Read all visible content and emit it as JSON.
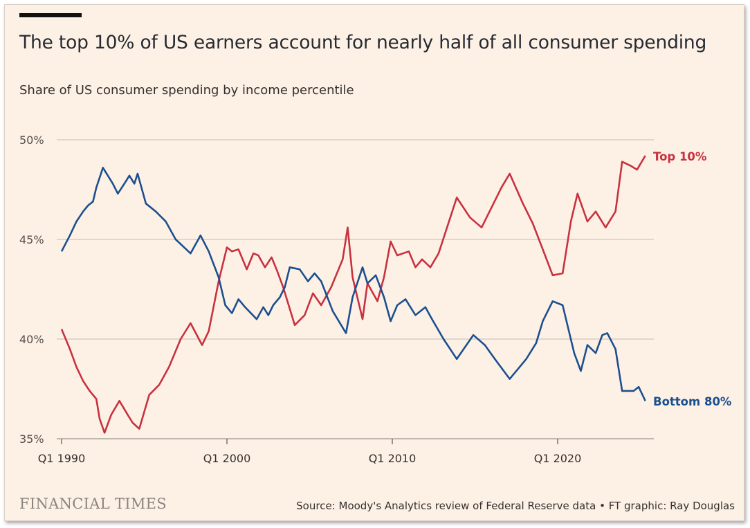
{
  "title": "The top 10% of US earners account for nearly half of all consumer spending",
  "subtitle": "Share of US consumer spending by income percentile",
  "footer": {
    "logo": "FINANCIAL TIMES",
    "source": "Source: Moody's Analytics review of Federal Reserve data • FT graphic: Ray Douglas"
  },
  "chart_data": {
    "type": "line",
    "title": "The top 10% of US earners account for nearly half of all consumer spending",
    "subtitle": "Share of US consumer spending by income percentile",
    "xlim": [
      1990,
      2025.8
    ],
    "ylim": [
      35,
      50
    ],
    "grid": true,
    "y_ticks": [
      {
        "value": 50,
        "label": "50%"
      },
      {
        "value": 45,
        "label": "45%"
      },
      {
        "value": 40,
        "label": "40%"
      },
      {
        "value": 35,
        "label": "35%"
      }
    ],
    "x_ticks": [
      {
        "value": 1990,
        "label": "Q1 1990"
      },
      {
        "value": 2000,
        "label": "Q1 2000"
      },
      {
        "value": 2010,
        "label": "Q1 2010"
      },
      {
        "value": 2020,
        "label": "Q1 2020"
      }
    ],
    "series": [
      {
        "name": "Top 10%",
        "color": "#c8313f",
        "x": [
          1990.0,
          1990.5,
          1990.9,
          1991.3,
          1991.7,
          1992.1,
          1992.3,
          1992.6,
          1993.0,
          1993.5,
          1994.0,
          1994.3,
          1994.7,
          1995.3,
          1995.9,
          1996.5,
          1997.2,
          1997.8,
          1998.5,
          1998.9,
          1999.5,
          2000.0,
          2000.3,
          2000.7,
          2001.2,
          2001.6,
          2001.9,
          2002.3,
          2002.7,
          2003.0,
          2003.4,
          2004.1,
          2004.7,
          2005.2,
          2005.7,
          2006.3,
          2007.0,
          2007.3,
          2007.6,
          2008.2,
          2008.5,
          2009.1,
          2009.5,
          2009.9,
          2010.3,
          2011.0,
          2011.4,
          2011.8,
          2012.3,
          2012.8,
          2013.9,
          2014.7,
          2015.4,
          2016.0,
          2016.6,
          2017.1,
          2017.9,
          2018.5,
          2019.1,
          2019.7,
          2020.3,
          2020.8,
          2021.2,
          2021.8,
          2022.3,
          2022.9,
          2023.5,
          2023.9,
          2024.4,
          2024.8,
          2025.3
        ],
        "values": [
          40.5,
          39.5,
          38.6,
          37.9,
          37.4,
          37.0,
          36.0,
          35.3,
          36.2,
          36.9,
          36.2,
          35.8,
          35.5,
          37.2,
          37.7,
          38.6,
          40.0,
          40.8,
          39.7,
          40.4,
          42.9,
          44.6,
          44.4,
          44.5,
          43.5,
          44.3,
          44.2,
          43.6,
          44.1,
          43.5,
          42.6,
          40.7,
          41.2,
          42.3,
          41.7,
          42.6,
          44.0,
          45.6,
          43.1,
          41.0,
          42.8,
          41.9,
          43.1,
          44.9,
          44.2,
          44.4,
          43.6,
          44.0,
          43.6,
          44.3,
          47.1,
          46.1,
          45.6,
          46.6,
          47.6,
          48.3,
          46.8,
          45.8,
          44.5,
          43.2,
          43.3,
          45.9,
          47.3,
          45.9,
          46.4,
          45.6,
          46.4,
          48.9,
          48.7,
          48.5,
          49.2
        ]
      },
      {
        "name": "Bottom 80%",
        "color": "#1c4f8f",
        "x": [
          1990.0,
          1990.5,
          1990.9,
          1991.3,
          1991.6,
          1991.9,
          1992.1,
          1992.5,
          1992.8,
          1993.1,
          1993.4,
          1993.8,
          1994.1,
          1994.4,
          1994.6,
          1995.1,
          1995.7,
          1996.3,
          1996.9,
          1997.8,
          1998.4,
          1998.9,
          1999.5,
          1999.9,
          2000.3,
          2000.7,
          2001.1,
          2001.8,
          2002.2,
          2002.5,
          2002.8,
          2003.2,
          2003.5,
          2003.8,
          2004.4,
          2004.9,
          2005.3,
          2005.7,
          2006.4,
          2007.2,
          2007.6,
          2008.2,
          2008.5,
          2009.0,
          2009.5,
          2009.9,
          2010.3,
          2010.8,
          2011.4,
          2012.0,
          2012.4,
          2013.1,
          2013.9,
          2014.9,
          2015.6,
          2016.2,
          2017.1,
          2018.1,
          2018.7,
          2019.1,
          2019.7,
          2020.3,
          2021.0,
          2021.4,
          2021.8,
          2022.3,
          2022.7,
          2023.0,
          2023.5,
          2023.9,
          2024.6,
          2024.9,
          2025.3
        ],
        "values": [
          44.4,
          45.2,
          45.9,
          46.4,
          46.7,
          46.9,
          47.6,
          48.6,
          48.2,
          47.8,
          47.3,
          47.8,
          48.2,
          47.8,
          48.3,
          46.8,
          46.4,
          45.9,
          45.0,
          44.3,
          45.2,
          44.4,
          43.1,
          41.7,
          41.3,
          42.0,
          41.6,
          41.0,
          41.6,
          41.2,
          41.7,
          42.1,
          42.6,
          43.6,
          43.5,
          42.9,
          43.3,
          42.9,
          41.4,
          40.3,
          42.1,
          43.6,
          42.8,
          43.2,
          42.1,
          40.9,
          41.7,
          42.0,
          41.2,
          41.6,
          41.0,
          40.0,
          39.0,
          40.2,
          39.7,
          39.0,
          38.0,
          39.0,
          39.8,
          40.9,
          41.9,
          41.7,
          39.3,
          38.4,
          39.7,
          39.3,
          40.2,
          40.3,
          39.5,
          37.4,
          37.4,
          37.6,
          36.9
        ]
      }
    ]
  }
}
